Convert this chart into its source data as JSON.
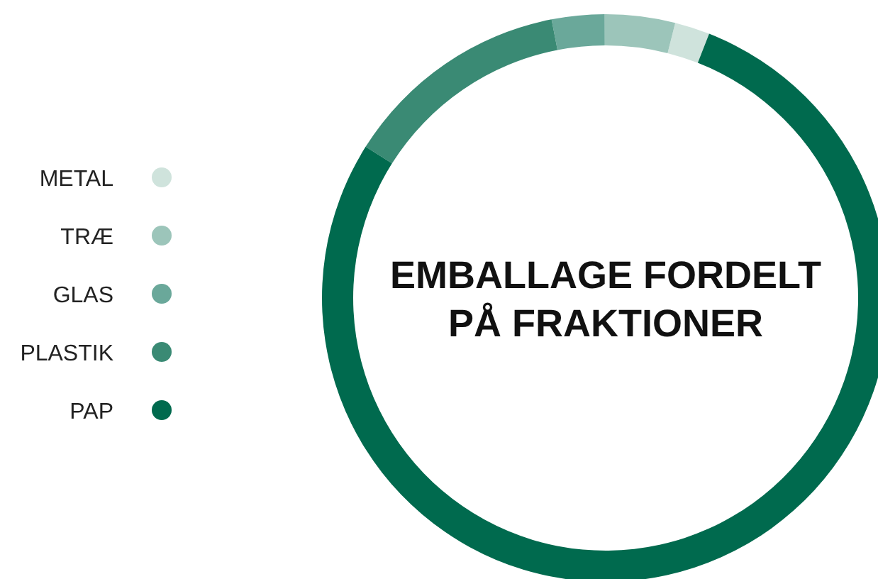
{
  "chart_data": {
    "type": "donut",
    "title": "EMBALLAGE FORDELT PÅ FRAKTIONER",
    "categories": [
      "METAL",
      "TRÆ",
      "GLAS",
      "PLASTIK",
      "PAP"
    ],
    "values": [
      2,
      4,
      3,
      13,
      78
    ],
    "colors": [
      "#cfe3dc",
      "#9cc5ba",
      "#6aa89a",
      "#3a8a74",
      "#006a4e"
    ],
    "legend": "left"
  }
}
